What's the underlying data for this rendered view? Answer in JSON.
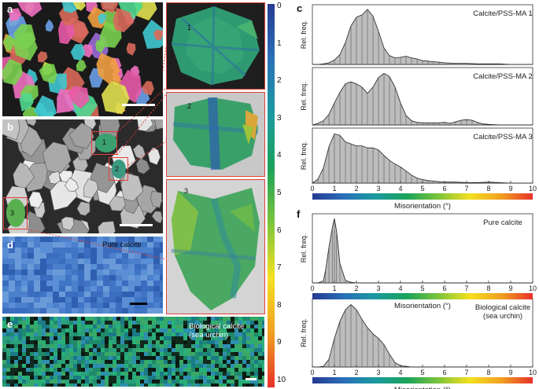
{
  "panel_labels": {
    "a": "a",
    "b": "b",
    "c": "c",
    "d": "d",
    "e": "e",
    "f": "f"
  },
  "grain_numbers": [
    "1",
    "2",
    "3"
  ],
  "panel_d_label": "Pure calcite",
  "panel_e_label_line1": "Biological calcite",
  "panel_e_label_line2": "(sea urchin)",
  "colorbar": {
    "ticks": [
      "0",
      "1",
      "2",
      "3",
      "4",
      "5",
      "6",
      "7",
      "8",
      "9",
      "10"
    ],
    "colors": [
      "#e8312a",
      "#f0a020",
      "#f4e020",
      "#7cc43a",
      "#1aa35a",
      "#1a9aa0",
      "#2a6fb8",
      "#263a90"
    ]
  },
  "x_axis": {
    "label": "Misorientation (°)",
    "ticks": [
      "0",
      "1",
      "2",
      "3",
      "4",
      "5",
      "6",
      "7",
      "8",
      "9",
      "10"
    ]
  },
  "y_axis_label": "Rel. freq.",
  "chart_data": [
    {
      "type": "area",
      "title": "Calcite/PSS-MA 1",
      "xlabel": "",
      "ylabel": "Rel. freq.",
      "xlim": [
        0,
        10
      ],
      "x": [
        0,
        0.25,
        0.5,
        0.75,
        1,
        1.25,
        1.5,
        1.75,
        2,
        2.25,
        2.5,
        2.75,
        3,
        3.25,
        3.5,
        3.75,
        4,
        4.25,
        4.5,
        4.75,
        5,
        5.25,
        5.5,
        5.75,
        6,
        6.5,
        7,
        7.5,
        8,
        8.5,
        9,
        9.5,
        10
      ],
      "values": [
        0,
        0,
        0.01,
        0.03,
        0.08,
        0.18,
        0.4,
        0.7,
        0.86,
        0.9,
        1.0,
        0.88,
        0.6,
        0.3,
        0.16,
        0.12,
        0.13,
        0.15,
        0.12,
        0.1,
        0.07,
        0.06,
        0.05,
        0.04,
        0.03,
        0.02,
        0.02,
        0.01,
        0.01,
        0.01,
        0,
        0,
        0
      ]
    },
    {
      "type": "area",
      "title": "Calcite/PSS-MA 2",
      "xlabel": "",
      "ylabel": "Rel. freq.",
      "xlim": [
        0,
        10
      ],
      "x": [
        0,
        0.25,
        0.5,
        0.75,
        1,
        1.25,
        1.5,
        1.75,
        2,
        2.25,
        2.5,
        2.75,
        3,
        3.25,
        3.5,
        3.75,
        4,
        4.25,
        4.5,
        4.75,
        5,
        5.25,
        5.5,
        5.75,
        6,
        6.25,
        6.5,
        6.75,
        7,
        7.25,
        7.5,
        7.75,
        8,
        8.5,
        9,
        9.5,
        10
      ],
      "values": [
        0,
        0.03,
        0.08,
        0.2,
        0.42,
        0.62,
        0.78,
        0.82,
        0.78,
        0.72,
        0.6,
        0.72,
        0.9,
        0.98,
        0.92,
        0.72,
        0.42,
        0.18,
        0.08,
        0.05,
        0.04,
        0.04,
        0.04,
        0.04,
        0.05,
        0.03,
        0.06,
        0.09,
        0.1,
        0.09,
        0.05,
        0.02,
        0.01,
        0,
        0,
        0,
        0
      ]
    },
    {
      "type": "area",
      "title": "Calcite/PSS-MA 3",
      "xlabel": "",
      "ylabel": "Rel. freq.",
      "xlim": [
        0,
        10
      ],
      "x": [
        0,
        0.25,
        0.5,
        0.75,
        1,
        1.25,
        1.5,
        1.75,
        2,
        2.25,
        2.5,
        2.75,
        3,
        3.25,
        3.5,
        3.75,
        4,
        4.25,
        4.5,
        4.75,
        5,
        5.25,
        5.5,
        5.75,
        6,
        6.5,
        7,
        7.5,
        8,
        8.5,
        9,
        9.5,
        10
      ],
      "values": [
        0,
        0.08,
        0.3,
        0.72,
        0.98,
        0.95,
        0.82,
        0.78,
        0.74,
        0.74,
        0.7,
        0.7,
        0.66,
        0.55,
        0.45,
        0.38,
        0.32,
        0.24,
        0.16,
        0.1,
        0.07,
        0.05,
        0.04,
        0.03,
        0.02,
        0.02,
        0.01,
        0.01,
        0.02,
        0.01,
        0,
        0,
        0
      ]
    },
    {
      "type": "area",
      "title": "Pure calcite",
      "xlabel": "Misorientation (°)",
      "ylabel": "Rel. freq.",
      "xlim": [
        0,
        10
      ],
      "x": [
        0,
        0.25,
        0.5,
        0.6,
        0.75,
        0.9,
        1.0,
        1.1,
        1.25,
        1.5,
        1.75,
        2,
        3,
        4,
        5,
        6,
        7,
        8,
        9,
        10
      ],
      "values": [
        0,
        0,
        0.03,
        0.2,
        0.55,
        0.85,
        1.0,
        0.8,
        0.3,
        0.04,
        0.01,
        0,
        0,
        0,
        0,
        0,
        0,
        0,
        0,
        0
      ]
    },
    {
      "type": "area",
      "title": "Biological calcite (sea urchin)",
      "xlabel": "Misorientation (°)",
      "ylabel": "Rel. freq.",
      "xlim": [
        0,
        10
      ],
      "x": [
        0,
        0.25,
        0.5,
        0.75,
        1,
        1.25,
        1.5,
        1.75,
        2,
        2.25,
        2.5,
        2.75,
        3,
        3.25,
        3.5,
        3.75,
        4,
        4.25,
        4.5,
        5,
        6,
        7,
        8,
        9,
        10
      ],
      "values": [
        0,
        0,
        0.01,
        0.12,
        0.45,
        0.72,
        0.9,
        0.98,
        0.9,
        0.75,
        0.62,
        0.52,
        0.45,
        0.35,
        0.2,
        0.07,
        0.02,
        0.01,
        0,
        0,
        0,
        0,
        0,
        0,
        0
      ]
    }
  ]
}
